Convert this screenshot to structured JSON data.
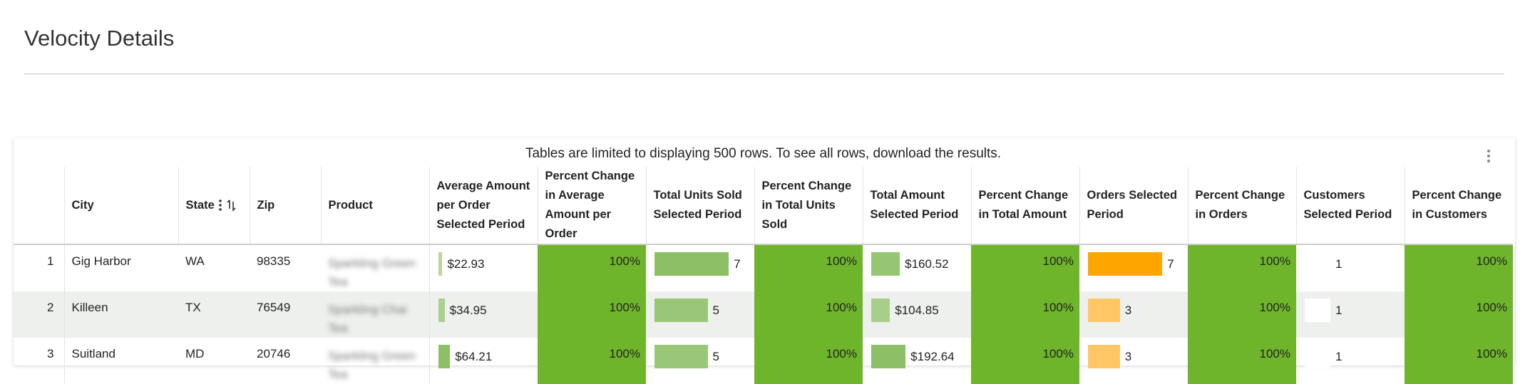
{
  "header": {
    "title": "Velocity Details"
  },
  "notice": "Tables are limited to displaying 500 rows. To see all rows, download the results.",
  "table": {
    "columns": [
      "City",
      "State",
      "Zip",
      "Product",
      "Average Amount per Order Selected Period",
      "Percent Change in Average Amount per Order",
      "Total Units Sold Selected Period",
      "Percent Change in Total Units Sold",
      "Total Amount Selected Period",
      "Percent Change in Total Amount",
      "Orders Selected Period",
      "Percent Change in Orders",
      "Customers Selected Period",
      "Percent Change in Customers"
    ],
    "rows": [
      [
        1,
        "Gig Harbor",
        "WA",
        98335,
        "Sparkling Green Tea",
        {
          "value": 22.93,
          "label": "$22.93"
        },
        {
          "value": 100,
          "label": "100%"
        },
        7,
        {
          "value": 100,
          "label": "100%"
        },
        {
          "value": 160.52,
          "label": "$160.52"
        },
        {
          "value": 100,
          "label": "100%"
        },
        7,
        {
          "value": 100,
          "label": "100%"
        },
        1,
        {
          "value": 100,
          "label": "100%"
        }
      ],
      [
        2,
        "Killeen",
        "TX",
        76549,
        "Sparkling Chai Tea",
        {
          "value": 34.95,
          "label": "$34.95"
        },
        {
          "value": 100,
          "label": "100%"
        },
        5,
        {
          "value": 100,
          "label": "100%"
        },
        {
          "value": 104.85,
          "label": "$104.85"
        },
        {
          "value": 100,
          "label": "100%"
        },
        3,
        {
          "value": 100,
          "label": "100%"
        },
        1,
        {
          "value": 100,
          "label": "100%"
        }
      ],
      [
        3,
        "Suitland",
        "MD",
        20746,
        "Sparkling Green Tea",
        {
          "value": 64.21,
          "label": "$64.21"
        },
        {
          "value": 100,
          "label": "100%"
        },
        5,
        {
          "value": 100,
          "label": "100%"
        },
        {
          "value": 192.64,
          "label": "$192.64"
        },
        {
          "value": 100,
          "label": "100%"
        },
        3,
        {
          "value": 100,
          "label": "100%"
        },
        1,
        {
          "value": 100,
          "label": "100%"
        }
      ]
    ]
  }
}
